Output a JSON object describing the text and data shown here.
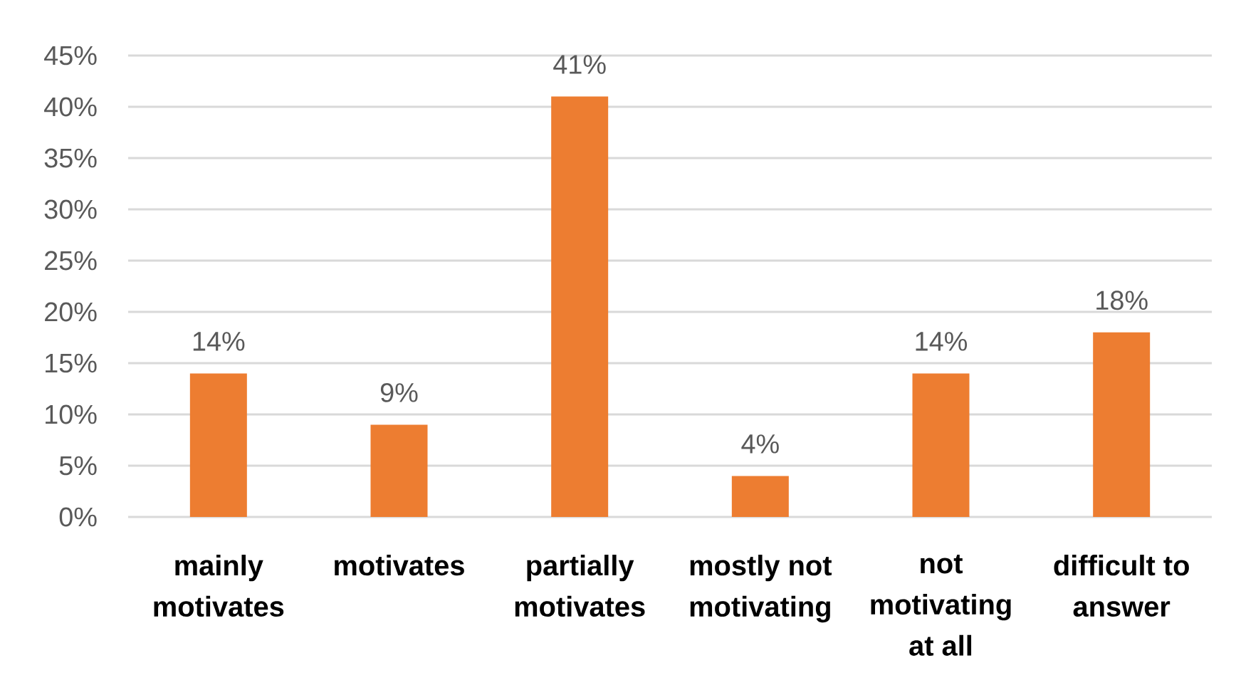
{
  "chart_data": {
    "type": "bar",
    "categories": [
      "mainly motivates",
      "motivates",
      "partially motivates",
      "mostly not motivating",
      "not motivating at all",
      "difficult to answer"
    ],
    "values": [
      14,
      9,
      41,
      4,
      14,
      18
    ],
    "value_labels": [
      "14%",
      "9%",
      "41%",
      "4%",
      "14%",
      "18%"
    ],
    "color": "#ed7d31",
    "ylim": [
      0,
      45
    ],
    "yticks": [
      {
        "value": 0,
        "label": "0%"
      },
      {
        "value": 5,
        "label": "5%"
      },
      {
        "value": 10,
        "label": "10%"
      },
      {
        "value": 15,
        "label": "15%"
      },
      {
        "value": 20,
        "label": "20%"
      },
      {
        "value": 25,
        "label": "25%"
      },
      {
        "value": 30,
        "label": "30%"
      },
      {
        "value": 35,
        "label": "35%"
      },
      {
        "value": 40,
        "label": "40%"
      },
      {
        "value": 45,
        "label": "45%"
      }
    ],
    "grid": "y"
  }
}
